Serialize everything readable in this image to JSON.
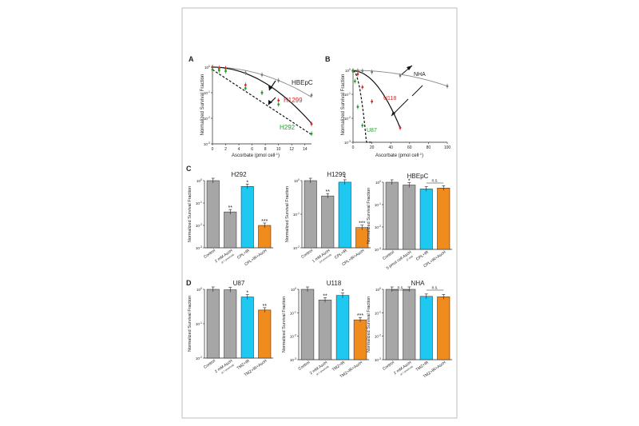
{
  "panels": {
    "A": {
      "letter": "A",
      "xlabel": "Ascorbate (pmol cell",
      "xlabel_sup": "-1",
      "xlabel_end": ")",
      "ylabel": "Normalized Survival Fraction",
      "labels": {
        "hbepc": "HBEpC",
        "h1299": "H1299",
        "h292": "H292"
      },
      "colors": {
        "hbepc": "#777777",
        "h1299": "#d62828",
        "h292": "#22a02a"
      }
    },
    "B": {
      "letter": "B",
      "xlabel": "Ascorbate (pmol cell",
      "xlabel_sup": "-1",
      "xlabel_end": ")",
      "ylabel": "Normalized Survival Fraction",
      "labels": {
        "nha": "NHA",
        "u118": "U118",
        "u87": "U87"
      },
      "colors": {
        "nha": "#777777",
        "u118": "#d62828",
        "u87": "#22a02a"
      }
    },
    "C": {
      "letter": "C"
    },
    "D": {
      "letter": "D"
    }
  },
  "bar_ylabel": "Normalized Survival Fraction",
  "bar_colors": {
    "grey": "#a6a6a6",
    "cyan": "#1ec8f0",
    "orange": "#f08c1e"
  },
  "chart_data": [
    {
      "id": "A",
      "type": "scatter",
      "xlabel": "Ascorbate (pmol cell-1)",
      "ylabel": "Normalized Survival Fraction",
      "xlim": [
        0,
        15
      ],
      "ylim": [
        0.001,
        1
      ],
      "yscale": "log",
      "xticks": [
        0,
        2,
        4,
        6,
        8,
        10,
        12,
        14
      ],
      "series": [
        {
          "name": "HBEpC",
          "x": [
            0,
            1,
            2,
            5,
            7.5,
            10,
            15
          ],
          "y": [
            1,
            0.95,
            0.9,
            0.6,
            0.5,
            0.3,
            0.08
          ]
        },
        {
          "name": "H1299",
          "x": [
            0,
            1,
            2,
            5,
            7.5,
            10,
            15
          ],
          "y": [
            1,
            0.9,
            0.9,
            0.2,
            0.1,
            0.05,
            0.006
          ]
        },
        {
          "name": "H292",
          "x": [
            0,
            1,
            2,
            5,
            7.5,
            10,
            15
          ],
          "y": [
            0.8,
            0.75,
            0.7,
            0.15,
            0.1,
            0.035,
            0.0025
          ]
        }
      ]
    },
    {
      "id": "B",
      "type": "scatter",
      "xlabel": "Ascorbate (pmol cell-1)",
      "ylabel": "Normalized Survival Fraction",
      "xlim": [
        0,
        100
      ],
      "ylim": [
        0.001,
        1
      ],
      "yscale": "log",
      "xticks": [
        0,
        20,
        40,
        60,
        80,
        100
      ],
      "series": [
        {
          "name": "NHA",
          "x": [
            0,
            5,
            10,
            20,
            50,
            100
          ],
          "y": [
            1,
            0.97,
            0.95,
            0.85,
            0.6,
            0.22
          ]
        },
        {
          "name": "U118",
          "x": [
            0,
            5,
            10,
            20,
            50
          ],
          "y": [
            0.9,
            0.7,
            0.2,
            0.05,
            0.004
          ]
        },
        {
          "name": "U87",
          "x": [
            0,
            2,
            5,
            10
          ],
          "y": [
            0.9,
            0.35,
            0.03,
            0.005
          ]
        }
      ]
    },
    {
      "id": "C1",
      "type": "bar",
      "title": "H292",
      "yscale": "log",
      "ylim": [
        0.001,
        1
      ],
      "ylabel": "Normalized Survival Fraction",
      "categories": [
        "Control",
        "2 mM AscH",
        "CPL+IR",
        "CPL+IR+AscH"
      ],
      "subs": [
        "",
        "(4.7 pmol/cell)",
        "",
        ""
      ],
      "values": [
        1,
        0.04,
        0.55,
        0.01
      ],
      "colors": [
        "grey",
        "grey",
        "cyan",
        "orange"
      ],
      "annotations": [
        "",
        "**",
        "*",
        "***"
      ]
    },
    {
      "id": "C2",
      "type": "bar",
      "title": "H1299",
      "yscale": "log",
      "ylim": [
        0.01,
        1
      ],
      "ylabel": "Normalized Survival Fraction",
      "categories": [
        "Control",
        "1 mM AscH",
        "CPL+IR",
        "CPL+IR+AscH"
      ],
      "subs": [
        "",
        "(10 pmol/cell)",
        "",
        ""
      ],
      "values": [
        1,
        0.35,
        0.9,
        0.04
      ],
      "colors": [
        "grey",
        "grey",
        "cyan",
        "orange"
      ],
      "annotations": [
        "",
        "**",
        "*",
        "***"
      ]
    },
    {
      "id": "C3",
      "type": "bar",
      "title": "HBEpC",
      "yscale": "log",
      "ylim": [
        0.001,
        1
      ],
      "ylabel": "Normalized Survival Fraction",
      "categories": [
        "Control",
        "5 pmol cell AscH",
        "CPL+IR",
        "CPL+IR+AscH"
      ],
      "subs": [
        "",
        "(2 mM)",
        "",
        ""
      ],
      "values": [
        1,
        0.75,
        0.5,
        0.55
      ],
      "colors": [
        "grey",
        "grey",
        "cyan",
        "orange"
      ],
      "annotations": [
        "",
        "*",
        "",
        ""
      ],
      "brackets": [
        {
          "from": 2,
          "to": 3,
          "label": "n.s."
        }
      ]
    },
    {
      "id": "D1",
      "type": "bar",
      "title": "U87",
      "yscale": "log",
      "ylim": [
        0.01,
        1
      ],
      "ylabel": "Normalized Survival Fraction",
      "categories": [
        "Control",
        "2 mM AscH",
        "TMZ+IR",
        "TMZ+IR+AscH"
      ],
      "subs": [
        "",
        "(4.7 pmol/cell)",
        "",
        ""
      ],
      "values": [
        1,
        0.97,
        0.6,
        0.25
      ],
      "colors": [
        "grey",
        "grey",
        "cyan",
        "orange"
      ],
      "annotations": [
        "",
        "",
        "*",
        "**"
      ]
    },
    {
      "id": "D2",
      "type": "bar",
      "title": "U118",
      "yscale": "log",
      "ylim": [
        0.001,
        1
      ],
      "ylabel": "Normalized Survival Fraction",
      "categories": [
        "Control",
        "2 mM AscH",
        "TMZ+IR",
        "TMZ+IR+AscH"
      ],
      "subs": [
        "",
        "(4.7 pmol/cell)",
        "",
        ""
      ],
      "values": [
        1,
        0.35,
        0.55,
        0.05
      ],
      "colors": [
        "grey",
        "grey",
        "cyan",
        "orange"
      ],
      "annotations": [
        "",
        "**",
        "*",
        "***"
      ]
    },
    {
      "id": "D3",
      "type": "bar",
      "title": "NHA",
      "yscale": "log",
      "ylim": [
        0.001,
        1
      ],
      "ylabel": "Normalized Survival Fraction",
      "categories": [
        "Control",
        "2 mM AscH",
        "TMZ+IR",
        "TMZ+IR+AscH"
      ],
      "subs": [
        "",
        "(4.7 pmol/cell)",
        "",
        ""
      ],
      "values": [
        1,
        1,
        0.5,
        0.48
      ],
      "colors": [
        "grey",
        "grey",
        "cyan",
        "orange"
      ],
      "annotations": [
        "",
        "",
        "",
        ""
      ],
      "brackets": [
        {
          "from": 0,
          "to": 1,
          "label": "n.s."
        },
        {
          "from": 2,
          "to": 3,
          "label": "n.s."
        }
      ]
    }
  ]
}
